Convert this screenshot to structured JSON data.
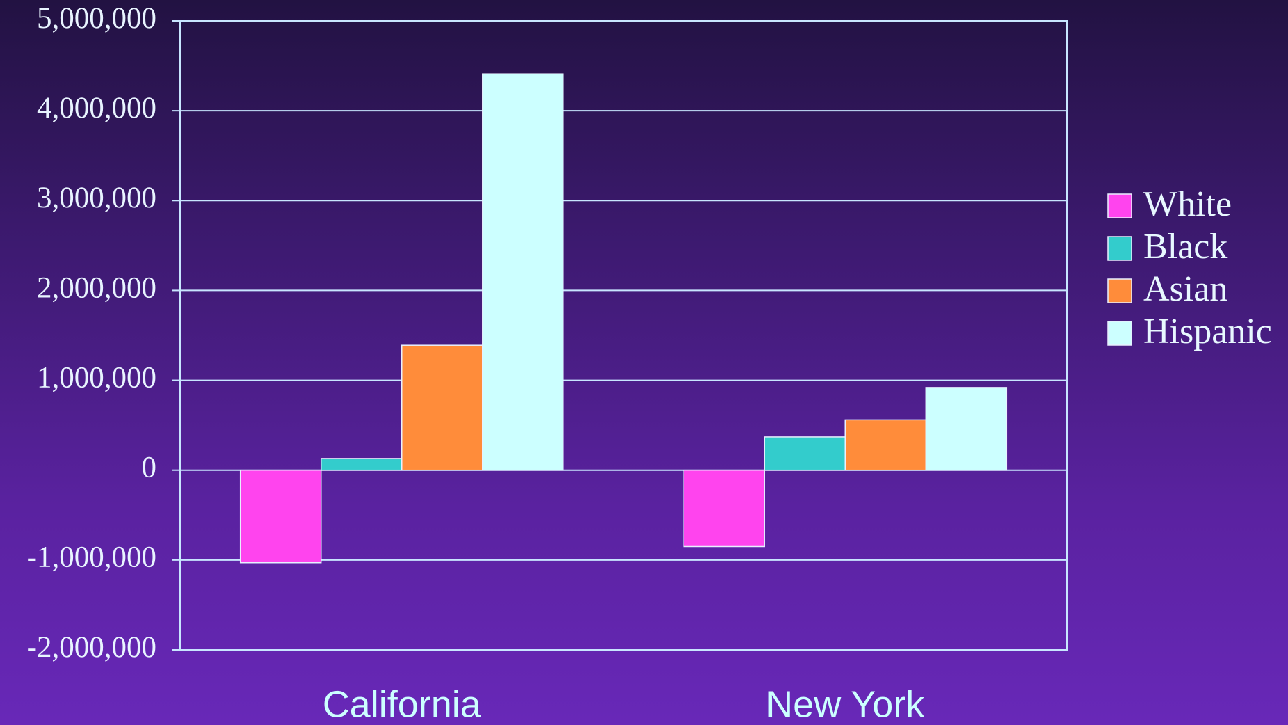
{
  "chart_data": {
    "type": "bar",
    "categories": [
      "California",
      "New York"
    ],
    "series": [
      {
        "name": "White",
        "color": "#ff44ee",
        "values": [
          -1030000,
          -850000
        ]
      },
      {
        "name": "Black",
        "color": "#33cccc",
        "values": [
          130000,
          370000
        ]
      },
      {
        "name": "Asian",
        "color": "#ff8c3a",
        "values": [
          1390000,
          560000
        ]
      },
      {
        "name": "Hispanic",
        "color": "#ccffff",
        "values": [
          4410000,
          920000
        ]
      }
    ],
    "ylim": [
      -2000000,
      5000000
    ],
    "yticks": [
      {
        "value": -2000000,
        "label": "-2,000,000"
      },
      {
        "value": -1000000,
        "label": "-1,000,000"
      },
      0,
      {
        "value": 1000000,
        "label": "1,000,000"
      },
      {
        "value": 2000000,
        "label": "2,000,000"
      },
      {
        "value": 3000000,
        "label": "3,000,000"
      },
      {
        "value": 4000000,
        "label": "4,000,000"
      },
      {
        "value": 5000000,
        "label": "5,000,000"
      }
    ],
    "grid": true,
    "legend": "right"
  }
}
